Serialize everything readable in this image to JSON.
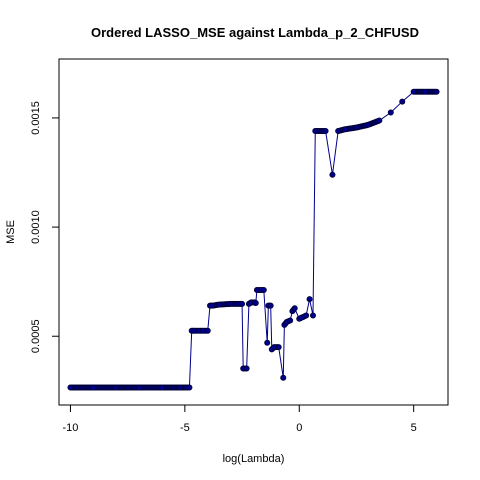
{
  "chart_data": {
    "type": "line",
    "title": "Ordered LASSO_MSE against Lambda_p_2_CHFUSD",
    "xlabel": "log(Lambda)",
    "ylabel": "MSE",
    "xlim": [
      -10.5,
      6.5
    ],
    "ylim": [
      0.000185,
      0.00177
    ],
    "xticks": [
      -10,
      -5,
      0,
      5
    ],
    "xtick_labels": [
      "-10",
      "-5",
      "0",
      "5"
    ],
    "yticks": [
      0.0005,
      0.001,
      0.0015
    ],
    "ytick_labels": [
      "0.0005",
      "0.0010",
      "0.0015"
    ],
    "grid": false,
    "legend": "none",
    "line_color": "#00008b",
    "point_color": "#000033",
    "series": [
      {
        "x": [
          -10,
          -9,
          -8,
          -7,
          -6,
          -5.2,
          -4.8,
          -4.7,
          -4.6,
          -4.4,
          -4.2,
          -4.0,
          -3.9,
          -3.8,
          -3.5,
          -3.0,
          -2.6,
          -2.5,
          -2.45,
          -2.3,
          -2.2,
          -2.1,
          -1.95,
          -1.9,
          -1.85,
          -1.7,
          -1.55,
          -1.4,
          -1.35,
          -1.25,
          -1.2,
          -1.1,
          -0.9,
          -0.7,
          -0.65,
          -0.55,
          -0.4,
          -0.3,
          -0.2,
          0.0,
          0.1,
          0.3,
          0.45,
          0.6,
          0.7,
          1.15,
          1.45,
          1.7,
          2.0,
          2.5,
          3.0,
          3.5,
          4.0,
          4.5,
          5.0,
          5.5,
          6.0
        ],
        "y": [
          0.000265,
          0.000265,
          0.000265,
          0.000265,
          0.000265,
          0.000265,
          0.000265,
          0.000525,
          0.000525,
          0.000525,
          0.000525,
          0.000525,
          0.00064,
          0.00064,
          0.000645,
          0.000648,
          0.000648,
          0.000648,
          0.000352,
          0.000352,
          0.000648,
          0.000655,
          0.000655,
          0.000652,
          0.000712,
          0.000712,
          0.000712,
          0.00047,
          0.00064,
          0.00064,
          0.00044,
          0.00045,
          0.00045,
          0.00031,
          0.000552,
          0.000565,
          0.000572,
          0.000615,
          0.000628,
          0.00058,
          0.000585,
          0.000595,
          0.00067,
          0.000595,
          0.00144,
          0.00144,
          0.00124,
          0.00144,
          0.001448,
          0.001456,
          0.001468,
          0.001488,
          0.001525,
          0.001575,
          0.00162,
          0.00162,
          0.00162
        ]
      }
    ]
  }
}
